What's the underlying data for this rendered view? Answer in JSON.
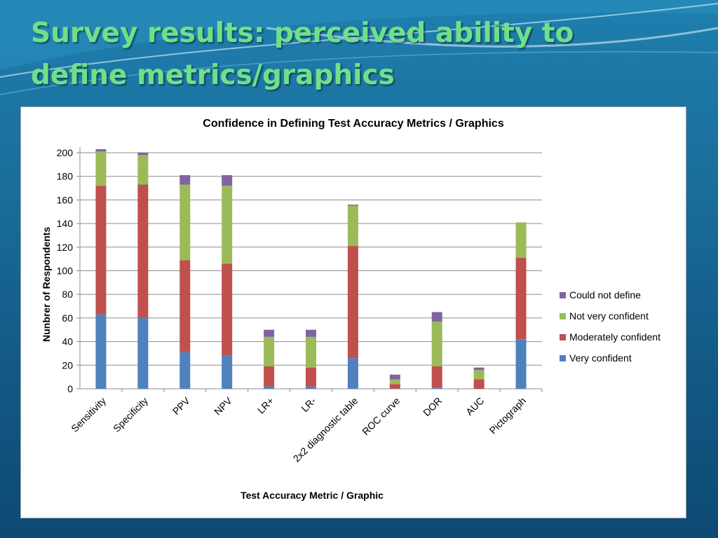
{
  "slide": {
    "title": "Survey results: perceived ability to define metrics/graphics"
  },
  "colors": {
    "title_text": "#6fe08a",
    "very_confident": "#4f81bd",
    "moderately_confident": "#c0504d",
    "not_very_confident": "#9bbb59",
    "could_not_define": "#8064a2"
  },
  "chart_data": {
    "type": "bar",
    "stacked": true,
    "title": "Confidence in Defining Test Accuracy Metrics / Graphics",
    "xlabel": "Test Accuracy Metric / Graphic",
    "ylabel": "Nunbrer of Respondents",
    "ylim": [
      0,
      200
    ],
    "yticks": [
      0,
      20,
      40,
      60,
      80,
      100,
      120,
      140,
      160,
      180,
      200
    ],
    "grid": true,
    "legend_position": "right",
    "categories": [
      "Sensitivity",
      "Specificity",
      "PPV",
      "NPV",
      "LR+",
      "LR-",
      "2x2 diagnostic  table",
      "ROC curve",
      "DOR",
      "AUC",
      "Pictograph"
    ],
    "series": [
      {
        "name": "Very confident",
        "color": "#4f81bd",
        "values": [
          63,
          60,
          31,
          28,
          2,
          2,
          26,
          0,
          1,
          0,
          42
        ]
      },
      {
        "name": "Moderately confident",
        "color": "#c0504d",
        "values": [
          109,
          113,
          78,
          78,
          17,
          16,
          95,
          4,
          18,
          8,
          69
        ]
      },
      {
        "name": "Not very confident",
        "color": "#9bbb59",
        "values": [
          29,
          25,
          64,
          66,
          25,
          26,
          34,
          4,
          38,
          8,
          30
        ]
      },
      {
        "name": "Could not define",
        "color": "#8064a2",
        "values": [
          2,
          2,
          8,
          9,
          6,
          6,
          1,
          4,
          8,
          2,
          0
        ]
      }
    ]
  }
}
